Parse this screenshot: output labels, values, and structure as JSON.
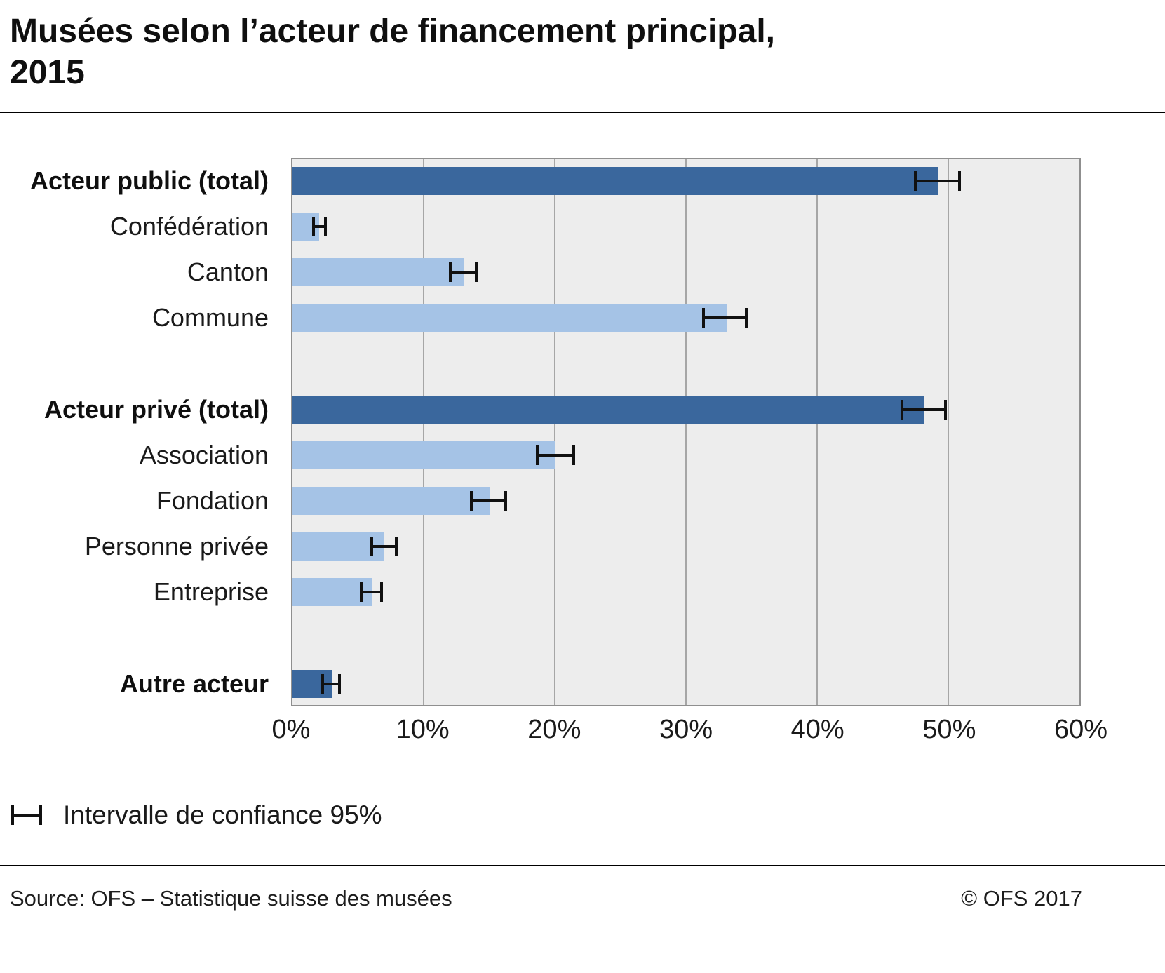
{
  "title": {
    "line1": "Musées selon l’acteur de financement principal,",
    "line2": "2015",
    "full": "Musées selon l’acteur de financement principal, 2015"
  },
  "legend": {
    "icon": "error-bar-icon",
    "label": "Intervalle de confiance 95%"
  },
  "footer": {
    "source": "Source: OFS – Statistique suisse des musées",
    "copyright": "© OFS 2017"
  },
  "colors": {
    "bar_dark": "#3a679d",
    "bar_light": "#a5c3e6",
    "plot_background": "#ededed",
    "gridline": "#a6a6a6",
    "error_bar": "#111111"
  },
  "chart_data": {
    "type": "bar",
    "orientation": "horizontal",
    "title": "Musées selon l’acteur de financement principal, 2015",
    "xlabel": "",
    "ylabel": "",
    "unit": "%",
    "xlim": [
      0,
      60
    ],
    "x_ticks": [
      "0%",
      "10%",
      "20%",
      "30%",
      "40%",
      "50%",
      "60%"
    ],
    "x_tick_values": [
      0,
      10,
      20,
      30,
      40,
      50,
      60
    ],
    "grid": true,
    "legend_note": "Intervalle de confiance 95%",
    "categories": [
      "Acteur public (total)",
      "Confédération",
      "Canton",
      "Commune",
      "Acteur privé (total)",
      "Association",
      "Fondation",
      "Personne privée",
      "Entreprise",
      "Autre acteur"
    ],
    "rows": [
      {
        "label": "Acteur public (total)",
        "value": 49.0,
        "ci_low": 47.3,
        "ci_high": 50.9,
        "emphasis": true
      },
      {
        "label": "Confédération",
        "value": 2.0,
        "ci_low": 1.6,
        "ci_high": 2.7,
        "emphasis": false
      },
      {
        "label": "Canton",
        "value": 13.0,
        "ci_low": 12.0,
        "ci_high": 14.2,
        "emphasis": false
      },
      {
        "label": "Commune",
        "value": 33.0,
        "ci_low": 31.2,
        "ci_high": 34.7,
        "emphasis": false
      },
      {
        "spacer": true
      },
      {
        "label": "Acteur privé (total)",
        "value": 48.0,
        "ci_low": 46.3,
        "ci_high": 49.8,
        "emphasis": true
      },
      {
        "label": "Association",
        "value": 20.0,
        "ci_low": 18.6,
        "ci_high": 21.6,
        "emphasis": false
      },
      {
        "label": "Fondation",
        "value": 15.0,
        "ci_low": 13.6,
        "ci_high": 16.4,
        "emphasis": false
      },
      {
        "label": "Personne privée",
        "value": 7.0,
        "ci_low": 6.0,
        "ci_high": 8.1,
        "emphasis": false
      },
      {
        "label": "Entreprise",
        "value": 6.0,
        "ci_low": 5.2,
        "ci_high": 7.0,
        "emphasis": false
      },
      {
        "spacer": true
      },
      {
        "label": "Autre acteur",
        "value": 3.0,
        "ci_low": 2.3,
        "ci_high": 3.8,
        "emphasis": true
      }
    ]
  }
}
